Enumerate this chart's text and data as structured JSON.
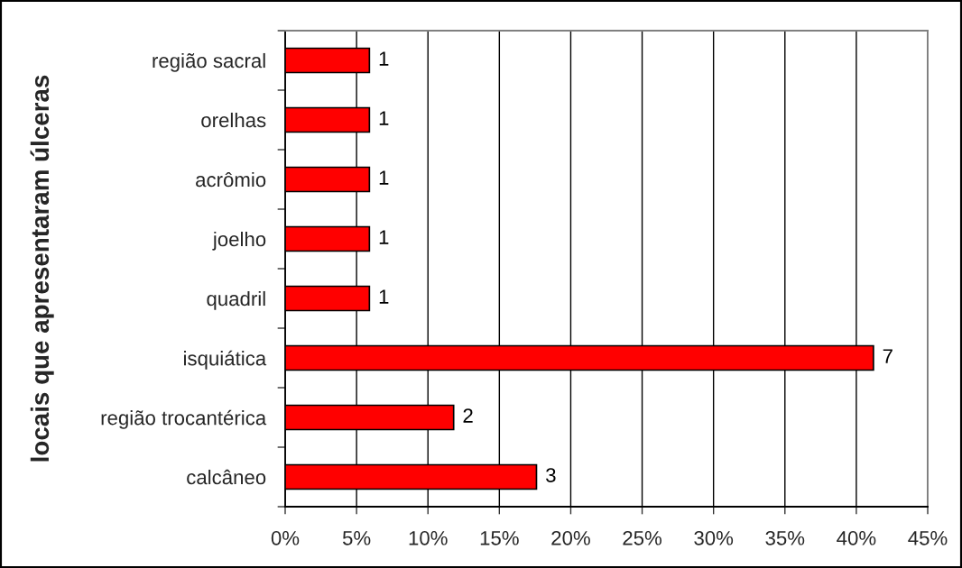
{
  "chart_data": {
    "type": "bar",
    "orientation": "horizontal",
    "ylabel": "locais que apresentaram úlceras",
    "categories": [
      "região sacral",
      "orelhas",
      "acrômio",
      "joelho",
      "quadril",
      "isquiática",
      "região trocantérica",
      "calcâneo"
    ],
    "values": [
      5.9,
      5.9,
      5.9,
      5.9,
      5.9,
      41.2,
      11.8,
      17.6
    ],
    "color": "#ff0000",
    "annotations": [
      {
        "text": "1",
        "x": 5.9,
        "y": "região sacral"
      },
      {
        "text": "1",
        "x": 5.9,
        "y": "orelhas"
      },
      {
        "text": "1",
        "x": 5.9,
        "y": "acrômio"
      },
      {
        "text": "1",
        "x": 5.9,
        "y": "joelho"
      },
      {
        "text": "1",
        "x": 5.9,
        "y": "quadril"
      },
      {
        "text": "7",
        "x": 41.2,
        "y": "isquiática"
      },
      {
        "text": "2",
        "x": 11.8,
        "y": "região trocantérica"
      },
      {
        "text": "3",
        "x": 17.6,
        "y": "calcâneo"
      }
    ],
    "xlim": [
      0,
      45
    ],
    "xticks": [
      {
        "value": 0,
        "label": "0%"
      },
      {
        "value": 5,
        "label": "5%"
      },
      {
        "value": 10,
        "label": "10%"
      },
      {
        "value": 15,
        "label": "15%"
      },
      {
        "value": 20,
        "label": "20%"
      },
      {
        "value": 25,
        "label": "25%"
      },
      {
        "value": 30,
        "label": "30%"
      },
      {
        "value": 35,
        "label": "35%"
      },
      {
        "value": 40,
        "label": "40%"
      },
      {
        "value": 45,
        "label": "45%"
      }
    ],
    "grid": "x",
    "legend": false
  }
}
